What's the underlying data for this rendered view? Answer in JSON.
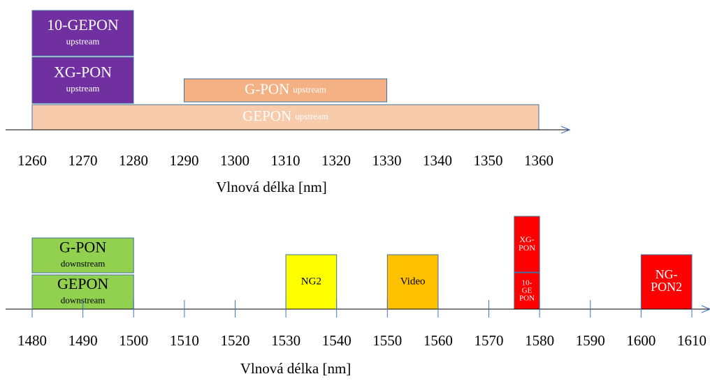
{
  "chart_data": [
    {
      "type": "range",
      "xlabel": "Vlnová délka [nm]",
      "xlim": [
        1260,
        1360
      ],
      "xticks": [
        1260,
        1270,
        1280,
        1290,
        1300,
        1310,
        1320,
        1330,
        1340,
        1350,
        1360
      ],
      "bands": [
        {
          "label": [
            "10-GEPON"
          ],
          "sub": "upstream",
          "start": 1260,
          "end": 1280,
          "color": "#7030a0",
          "text_color": "#ffffff"
        },
        {
          "label": [
            "XG-PON"
          ],
          "sub": "upstream",
          "start": 1260,
          "end": 1280,
          "color": "#7030a0",
          "text_color": "#ffffff"
        },
        {
          "label": [
            "G-PON"
          ],
          "sub": "upstream",
          "start": 1290,
          "end": 1330,
          "color": "#f4b183",
          "text_color": "#ffffff"
        },
        {
          "label": [
            "GEPON"
          ],
          "sub": "upstream",
          "start": 1260,
          "end": 1360,
          "color": "#f8cbad",
          "text_color": "#ffffff"
        }
      ]
    },
    {
      "type": "range",
      "xlabel": "Vlnová délka [nm]",
      "xlim": [
        1480,
        1610
      ],
      "xticks": [
        1480,
        1490,
        1500,
        1510,
        1520,
        1530,
        1540,
        1550,
        1560,
        1570,
        1580,
        1590,
        1600,
        1610
      ],
      "bands": [
        {
          "label": [
            "G-PON"
          ],
          "sub": "downstream",
          "start": 1480,
          "end": 1500,
          "color": "#92d050",
          "text_color": "#000000"
        },
        {
          "label": [
            "GEPON"
          ],
          "sub": "downstream",
          "start": 1480,
          "end": 1500,
          "color": "#92d050",
          "text_color": "#000000"
        },
        {
          "label": [
            "NG2"
          ],
          "start": 1530,
          "end": 1540,
          "color": "#ffff00",
          "text_color": "#000000"
        },
        {
          "label": [
            "Video"
          ],
          "start": 1550,
          "end": 1560,
          "color": "#ffc000",
          "text_color": "#000000"
        },
        {
          "label": [
            "XG-",
            "PON"
          ],
          "start": 1575,
          "end": 1580,
          "color": "#ff0000",
          "text_color": "#ffffff"
        },
        {
          "label": [
            "10-",
            "GE",
            "PON"
          ],
          "start": 1575,
          "end": 1580,
          "color": "#ff0000",
          "text_color": "#ffffff"
        },
        {
          "label": [
            "NG-",
            "PON2"
          ],
          "start": 1600,
          "end": 1610,
          "color": "#ff0000",
          "text_color": "#ffffff"
        }
      ]
    }
  ]
}
